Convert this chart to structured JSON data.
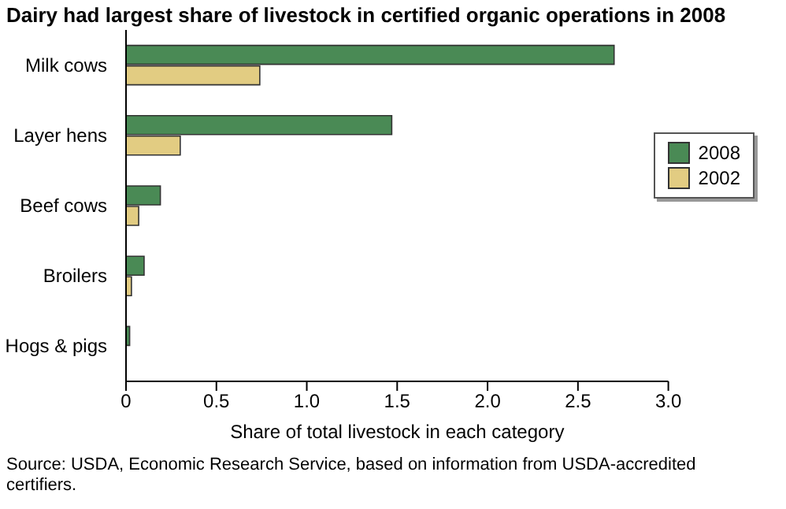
{
  "chart_data": {
    "type": "bar",
    "orientation": "horizontal",
    "title": "Dairy had largest share of livestock in certified organic operations in 2008",
    "xlabel": "Share of total livestock in each category",
    "categories": [
      "Milk cows",
      "Layer hens",
      "Beef cows",
      "Broilers",
      "Hogs & pigs"
    ],
    "series": [
      {
        "name": "2008",
        "color": "#4a8a55",
        "values": [
          2.7,
          1.47,
          0.19,
          0.1,
          0.02
        ]
      },
      {
        "name": "2002",
        "color": "#e2cc82",
        "values": [
          0.74,
          0.3,
          0.07,
          0.03,
          0
        ]
      }
    ],
    "xlim": [
      0,
      3
    ],
    "xticks": [
      {
        "value": 0,
        "label": "0"
      },
      {
        "value": 0.5,
        "label": "0.5"
      },
      {
        "value": 1,
        "label": "1.0"
      },
      {
        "value": 1.5,
        "label": "1.5"
      },
      {
        "value": 2,
        "label": "2.0"
      },
      {
        "value": 2.5,
        "label": "2.5"
      },
      {
        "value": 3,
        "label": "3.0"
      }
    ],
    "grid": false,
    "legend": "right",
    "annotations": [
      "Source: USDA, Economic Research Service, based on information from USDA-accredited certifiers."
    ]
  }
}
